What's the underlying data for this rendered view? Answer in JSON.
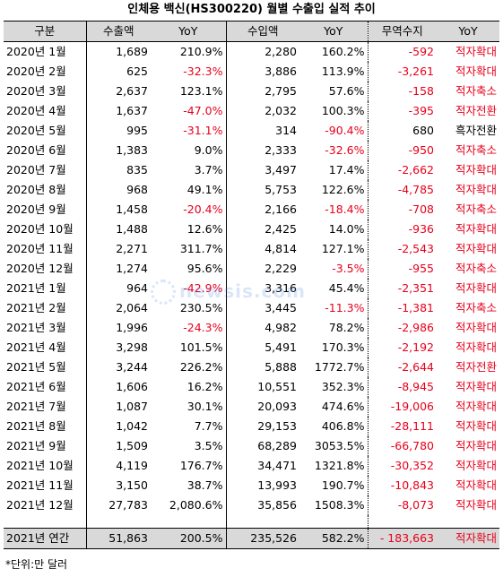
{
  "title": "인체용 백신(HS300220) 월별 수출입 실적 추이",
  "columns": [
    "구분",
    "수출액",
    "YoY",
    "수입액",
    "YoY",
    "무역수지",
    "YoY"
  ],
  "rows": [
    [
      "2020년  1월",
      "1,689",
      "210.9%",
      "2,280",
      "160.2%",
      "-592",
      "적자확대"
    ],
    [
      "2020년  2월",
      "625",
      "-32.3%",
      "3,886",
      "113.9%",
      "-3,261",
      "적자확대"
    ],
    [
      "2020년  3월",
      "2,637",
      "123.1%",
      "2,795",
      "57.6%",
      "-158",
      "적자축소"
    ],
    [
      "2020년  4월",
      "1,637",
      "-47.0%",
      "2,032",
      "100.3%",
      "-395",
      "적자전환"
    ],
    [
      "2020년  5월",
      "995",
      "-31.1%",
      "314",
      "-90.4%",
      "680",
      "흑자전환"
    ],
    [
      "2020년  6월",
      "1,383",
      "9.0%",
      "2,333",
      "-32.6%",
      "-950",
      "적자축소"
    ],
    [
      "2020년  7월",
      "835",
      "3.7%",
      "3,497",
      "17.4%",
      "-2,662",
      "적자확대"
    ],
    [
      "2020년  8월",
      "968",
      "49.1%",
      "5,753",
      "122.6%",
      "-4,785",
      "적자확대"
    ],
    [
      "2020년  9월",
      "1,458",
      "-20.4%",
      "2,166",
      "-18.4%",
      "-708",
      "적자축소"
    ],
    [
      "2020년 10월",
      "1,488",
      "12.6%",
      "2,425",
      "14.0%",
      "-936",
      "적자확대"
    ],
    [
      "2020년 11월",
      "2,271",
      "311.7%",
      "4,814",
      "127.1%",
      "-2,543",
      "적자확대"
    ],
    [
      "2020년 12월",
      "1,274",
      "95.6%",
      "2,229",
      "-3.5%",
      "-955",
      "적자축소"
    ],
    [
      "2021년  1월",
      "964",
      "-42.9%",
      "3,316",
      "45.4%",
      "-2,351",
      "적자확대"
    ],
    [
      "2021년  2월",
      "2,064",
      "230.5%",
      "3,445",
      "-11.3%",
      "-1,381",
      "적자축소"
    ],
    [
      "2021년  3월",
      "1,996",
      "-24.3%",
      "4,982",
      "78.2%",
      "-2,986",
      "적자확대"
    ],
    [
      "2021년  4월",
      "3,298",
      "101.5%",
      "5,491",
      "170.3%",
      "-2,192",
      "적자확대"
    ],
    [
      "2021년  5월",
      "3,244",
      "226.2%",
      "5,888",
      "1772.7%",
      "-2,644",
      "적자전환"
    ],
    [
      "2021년  6월",
      "1,606",
      "16.2%",
      "10,551",
      "352.3%",
      "-8,945",
      "적자확대"
    ],
    [
      "2021년  7월",
      "1,087",
      "30.1%",
      "20,093",
      "474.6%",
      "-19,006",
      "적자확대"
    ],
    [
      "2021년  8월",
      "1,042",
      "7.7%",
      "29,153",
      "406.8%",
      "-28,111",
      "적자확대"
    ],
    [
      "2021년  9월",
      "1,509",
      "3.5%",
      "68,289",
      "3053.5%",
      "-66,780",
      "적자확대"
    ],
    [
      "2021년 10월",
      "4,119",
      "176.7%",
      "34,471",
      "1321.8%",
      "-30,352",
      "적자확대"
    ],
    [
      "2021년 11월",
      "3,150",
      "38.7%",
      "13,993",
      "190.7%",
      "-10,843",
      "적자확대"
    ],
    [
      "2021년 12월",
      "27,783",
      "2,080.6%",
      "35,856",
      "1508.3%",
      "-8,073",
      "적자확대"
    ]
  ],
  "total": [
    "2021년  연간",
    "51,863",
    "200.5%",
    "235,526",
    "582.2%",
    "-  183,663",
    "적자확대"
  ],
  "note": "*단위:만 달러",
  "watermark": "newsis.com",
  "colors": {
    "negative": "#e8001b",
    "header_bg": "#d9d9d9"
  }
}
